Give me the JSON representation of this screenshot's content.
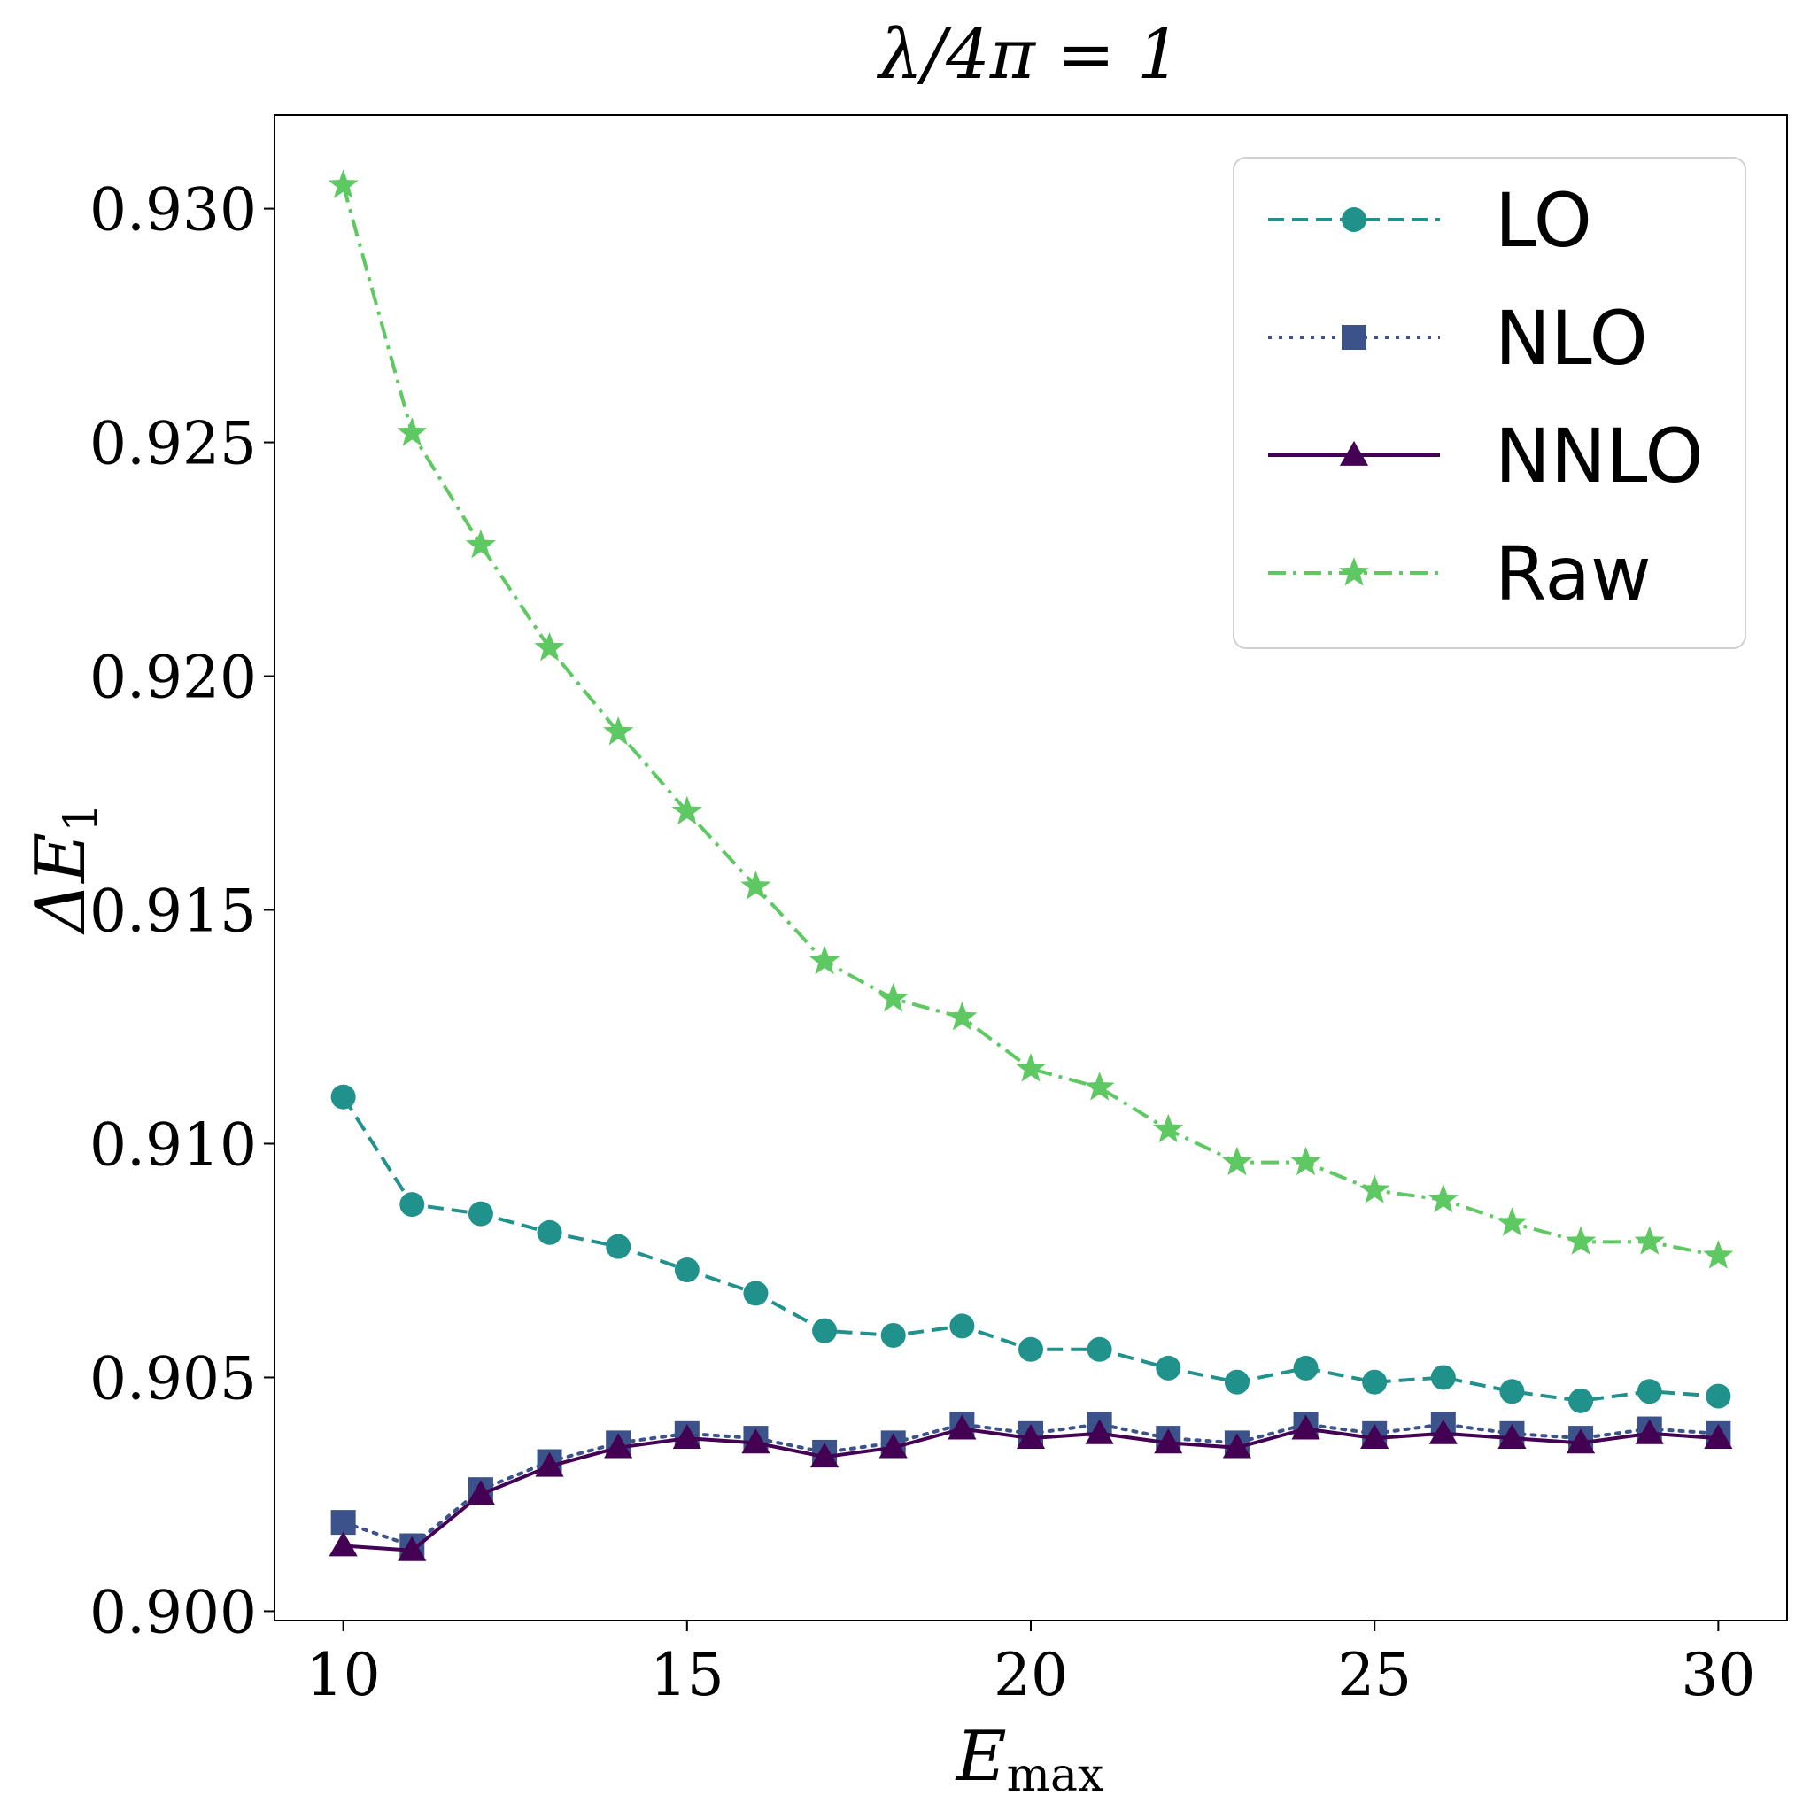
{
  "chart_data": {
    "type": "line",
    "title": "λ/4π = 1",
    "xlabel": "E_max",
    "xlabel_main": "E",
    "xlabel_sub": "max",
    "ylabel": "ΔE_1",
    "ylabel_main": "ΔE",
    "ylabel_sub": "1",
    "xlim": [
      9,
      31
    ],
    "ylim": [
      0.8998,
      0.932
    ],
    "xticks": [
      10,
      15,
      20,
      25,
      30
    ],
    "xtick_labels": [
      "10",
      "15",
      "20",
      "25",
      "30"
    ],
    "yticks": [
      0.9,
      0.905,
      0.91,
      0.915,
      0.92,
      0.925,
      0.93
    ],
    "ytick_labels": [
      "0.900",
      "0.905",
      "0.910",
      "0.915",
      "0.920",
      "0.925",
      "0.930"
    ],
    "grid": false,
    "legend_position": "top-right",
    "x": [
      10,
      11,
      12,
      13,
      14,
      15,
      16,
      17,
      18,
      19,
      20,
      21,
      22,
      23,
      24,
      25,
      26,
      27,
      28,
      29,
      30
    ],
    "series": [
      {
        "name": "LO",
        "color": "#21918c",
        "dash": "dashed",
        "marker": "circle",
        "values": [
          0.911,
          0.9087,
          0.9085,
          0.9081,
          0.9078,
          0.9073,
          0.9068,
          0.906,
          0.9059,
          0.9061,
          0.9056,
          0.9056,
          0.9052,
          0.9049,
          0.9052,
          0.9049,
          0.905,
          0.9047,
          0.9045,
          0.9047,
          0.9046
        ]
      },
      {
        "name": "NLO",
        "color": "#3b528b",
        "dash": "dotted",
        "marker": "square",
        "values": [
          0.9019,
          0.9014,
          0.9026,
          0.9032,
          0.9036,
          0.9038,
          0.9037,
          0.9034,
          0.9036,
          0.904,
          0.9038,
          0.904,
          0.9037,
          0.9036,
          0.904,
          0.9038,
          0.904,
          0.9038,
          0.9037,
          0.9039,
          0.9038
        ]
      },
      {
        "name": "NNLO",
        "color": "#440154",
        "dash": "solid",
        "marker": "triangle",
        "values": [
          0.9014,
          0.9013,
          0.9025,
          0.9031,
          0.9035,
          0.9037,
          0.9036,
          0.9033,
          0.9035,
          0.9039,
          0.9037,
          0.9038,
          0.9036,
          0.9035,
          0.9039,
          0.9037,
          0.9038,
          0.9037,
          0.9036,
          0.9038,
          0.9037
        ]
      },
      {
        "name": "Raw",
        "color": "#5ec962",
        "dash": "dashdot",
        "marker": "star",
        "values": [
          0.9305,
          0.9252,
          0.9228,
          0.9206,
          0.9188,
          0.9171,
          0.9155,
          0.9139,
          0.9131,
          0.9127,
          0.9116,
          0.9112,
          0.9103,
          0.9096,
          0.9096,
          0.909,
          0.9088,
          0.9083,
          0.9079,
          0.9079,
          0.9076
        ]
      }
    ]
  }
}
